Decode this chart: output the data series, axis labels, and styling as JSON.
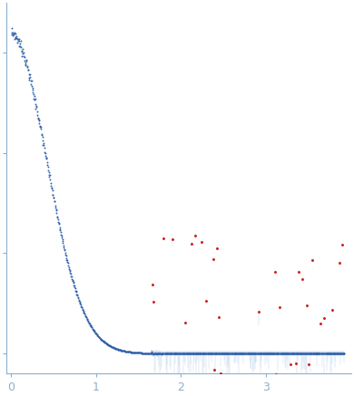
{
  "title": "",
  "xlabel": "",
  "ylabel": "",
  "xlim": [
    -0.05,
    4.0
  ],
  "ylim": [
    -0.02,
    0.35
  ],
  "background_color": "#ffffff",
  "dot_color_main": "#2b5ca8",
  "dot_color_outlier": "#cc1111",
  "errorbar_color": "#b8d0ea",
  "axis_color": "#8ab0d0",
  "tick_color": "#8ab0d0",
  "tick_label_color": "#8ab0d0",
  "xticks": [
    0,
    1,
    2,
    3
  ],
  "n_points_low": 350,
  "n_points_high": 650,
  "seed": 7
}
